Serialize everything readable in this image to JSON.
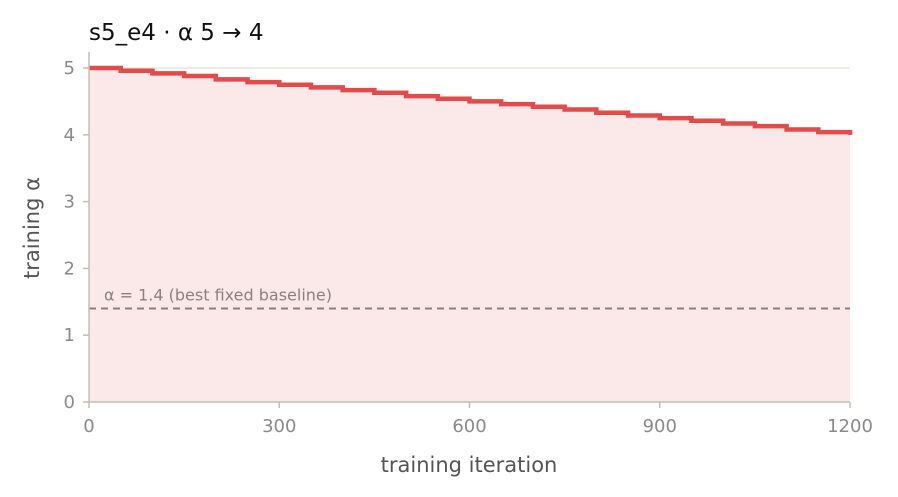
{
  "chart_data": {
    "type": "line",
    "title": "s5_e4   ·   α 5 → 4",
    "xlabel": "training iteration",
    "ylabel": "training α",
    "xlim": [
      0,
      1200
    ],
    "ylim": [
      0,
      5.3
    ],
    "xticks": [
      0,
      300,
      600,
      900,
      1200
    ],
    "yticks": [
      0,
      1,
      2,
      3,
      4,
      5
    ],
    "grid": "horizontal",
    "series": [
      {
        "style": "step",
        "color": "#e34a4a",
        "fill": "#fbe9e9",
        "x": [
          0,
          50,
          100,
          150,
          200,
          250,
          300,
          350,
          400,
          450,
          500,
          550,
          600,
          650,
          700,
          750,
          800,
          850,
          900,
          950,
          1000,
          1050,
          1100,
          1150,
          1200
        ],
        "y": [
          5.0,
          4.96,
          4.92,
          4.88,
          4.83,
          4.79,
          4.75,
          4.71,
          4.67,
          4.63,
          4.58,
          4.54,
          4.5,
          4.46,
          4.42,
          4.38,
          4.33,
          4.29,
          4.25,
          4.21,
          4.17,
          4.13,
          4.08,
          4.04,
          4.0
        ]
      }
    ],
    "reference_line": {
      "y": 1.4,
      "label": "α = 1.4 (best fixed baseline)",
      "color": "#8c7f7f",
      "style": "dashed"
    },
    "colors": {
      "top_gridline": "#e4e8da",
      "gridline": "#e3c9c9",
      "axis": "#c4bdb6"
    }
  }
}
